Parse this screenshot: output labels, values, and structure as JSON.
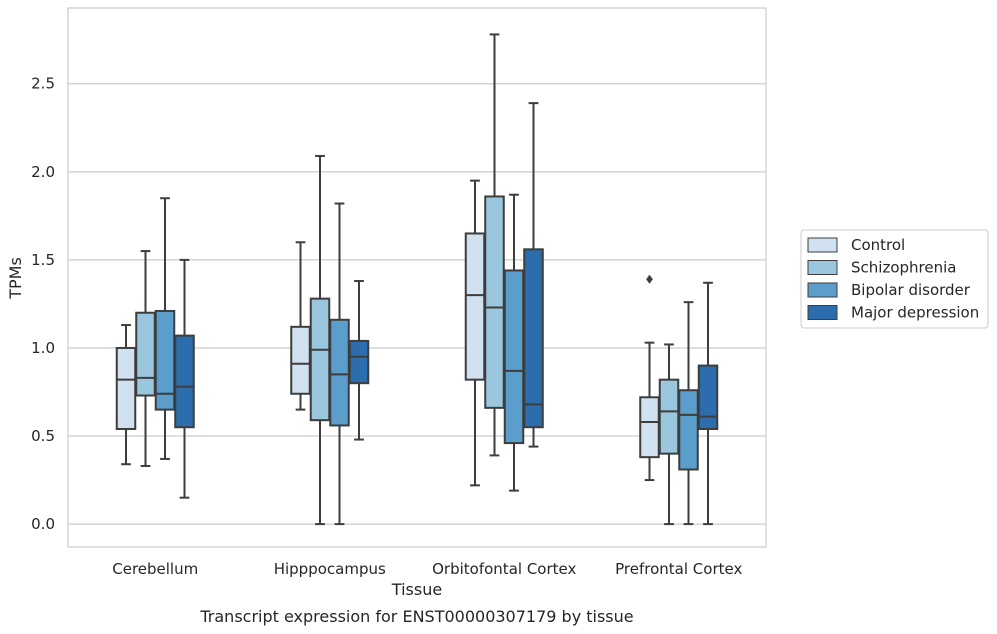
{
  "caption": "Transcript expression for ENST00000307179 by tissue",
  "chart_data": {
    "type": "box",
    "xlabel": "Tissue",
    "ylabel": "TPMs",
    "categories": [
      "Cerebellum",
      "Hipppocampus",
      "Orbitofontal Cortex",
      "Prefrontal Cortex"
    ],
    "ylim": [
      -0.13,
      2.93
    ],
    "yticks": [
      0.0,
      0.5,
      1.0,
      1.5,
      2.0,
      2.5
    ],
    "ytick_labels": [
      "0.0",
      "0.5",
      "1.0",
      "1.5",
      "2.0",
      "2.5"
    ],
    "grid": "horizontal",
    "legend_position": "right",
    "series": [
      {
        "name": "Control",
        "color": "#d1e1f0",
        "boxes": [
          {
            "whislo": 0.34,
            "q1": 0.54,
            "med": 0.82,
            "q3": 1.0,
            "whishi": 1.13,
            "fliers": []
          },
          {
            "whislo": 0.65,
            "q1": 0.74,
            "med": 0.91,
            "q3": 1.12,
            "whishi": 1.6,
            "fliers": []
          },
          {
            "whislo": 0.22,
            "q1": 0.82,
            "med": 1.3,
            "q3": 1.65,
            "whishi": 1.95,
            "fliers": []
          },
          {
            "whislo": 0.25,
            "q1": 0.38,
            "med": 0.58,
            "q3": 0.72,
            "whishi": 1.03,
            "fliers": [
              1.39
            ]
          }
        ]
      },
      {
        "name": "Schizophrenia",
        "color": "#9ac7de",
        "boxes": [
          {
            "whislo": 0.33,
            "q1": 0.73,
            "med": 0.83,
            "q3": 1.2,
            "whishi": 1.55,
            "fliers": []
          },
          {
            "whislo": 0.0,
            "q1": 0.59,
            "med": 0.99,
            "q3": 1.28,
            "whishi": 2.09,
            "fliers": []
          },
          {
            "whislo": 0.39,
            "q1": 0.66,
            "med": 1.23,
            "q3": 1.86,
            "whishi": 2.78,
            "fliers": []
          },
          {
            "whislo": 0.0,
            "q1": 0.4,
            "med": 0.64,
            "q3": 0.82,
            "whishi": 1.02,
            "fliers": []
          }
        ]
      },
      {
        "name": "Bipolar disorder",
        "color": "#5b9dcb",
        "boxes": [
          {
            "whislo": 0.37,
            "q1": 0.65,
            "med": 0.74,
            "q3": 1.21,
            "whishi": 1.85,
            "fliers": []
          },
          {
            "whislo": 0.0,
            "q1": 0.56,
            "med": 0.85,
            "q3": 1.16,
            "whishi": 1.82,
            "fliers": []
          },
          {
            "whislo": 0.19,
            "q1": 0.46,
            "med": 0.87,
            "q3": 1.44,
            "whishi": 1.87,
            "fliers": []
          },
          {
            "whislo": 0.0,
            "q1": 0.31,
            "med": 0.62,
            "q3": 0.76,
            "whishi": 1.26,
            "fliers": []
          }
        ]
      },
      {
        "name": "Major depression",
        "color": "#2c6ead",
        "boxes": [
          {
            "whislo": 0.15,
            "q1": 0.55,
            "med": 0.78,
            "q3": 1.07,
            "whishi": 1.5,
            "fliers": []
          },
          {
            "whislo": 0.48,
            "q1": 0.8,
            "med": 0.95,
            "q3": 1.04,
            "whishi": 1.38,
            "fliers": []
          },
          {
            "whislo": 0.44,
            "q1": 0.55,
            "med": 0.68,
            "q3": 1.56,
            "whishi": 2.39,
            "fliers": []
          },
          {
            "whislo": 0.0,
            "q1": 0.54,
            "med": 0.61,
            "q3": 0.9,
            "whishi": 1.37,
            "fliers": []
          }
        ]
      }
    ]
  }
}
